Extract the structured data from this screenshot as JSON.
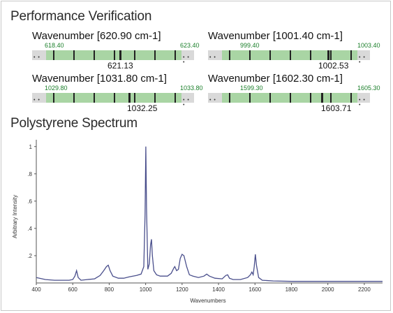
{
  "performance_title": "Performance Verification",
  "spectrum_title": "Polystyrene Spectrum",
  "verifications": [
    {
      "title": "Wavenumber [620.90 cm-1]",
      "low": "618.40",
      "high": "623.40",
      "measured": "621.13"
    },
    {
      "title": "Wavenumber [1001.40 cm-1]",
      "low": "999.40",
      "high": "1003.40",
      "measured": "1002.53"
    },
    {
      "title": "Wavenumber [1031.80 cm-1]",
      "low": "1029.80",
      "high": "1033.80",
      "measured": "1032.25"
    },
    {
      "title": "Wavenumber [1602.30 cm-1]",
      "low": "1599.30",
      "high": "1605.30",
      "measured": "1603.71"
    }
  ],
  "chart_data": {
    "type": "line",
    "xlabel": "Wavenumbers",
    "ylabel": "Arbitrary Intensity",
    "xlim": [
      400,
      2300
    ],
    "ylim": [
      0,
      1.05
    ],
    "x_ticks": [
      "400",
      "600",
      "800",
      "1000",
      "1200",
      "1400",
      "1600",
      "1800",
      "2000",
      "2200"
    ],
    "y_ticks": [
      ".2",
      ".4",
      ".6",
      ".8",
      "1"
    ],
    "line_color": "#4a4f8c",
    "series": [
      {
        "x": [
          400,
          450,
          500,
          550,
          580,
          600,
          612,
          621,
          630,
          645,
          680,
          720,
          750,
          770,
          785,
          795,
          805,
          820,
          850,
          880,
          910,
          950,
          975,
          990,
          997,
          1001,
          1005,
          1012,
          1020,
          1027,
          1032,
          1037,
          1045,
          1060,
          1080,
          1100,
          1120,
          1140,
          1155,
          1160,
          1170,
          1180,
          1190,
          1200,
          1210,
          1225,
          1240,
          1260,
          1290,
          1320,
          1335,
          1350,
          1380,
          1420,
          1440,
          1450,
          1460,
          1480,
          1520,
          1560,
          1575,
          1583,
          1590,
          1596,
          1602,
          1608,
          1620,
          1640,
          1700,
          1800,
          1900,
          2000,
          2100,
          2200,
          2300
        ],
        "y": [
          0.04,
          0.025,
          0.02,
          0.02,
          0.02,
          0.025,
          0.05,
          0.09,
          0.04,
          0.02,
          0.025,
          0.03,
          0.055,
          0.09,
          0.12,
          0.13,
          0.09,
          0.05,
          0.035,
          0.035,
          0.045,
          0.055,
          0.065,
          0.12,
          0.5,
          1.0,
          0.55,
          0.1,
          0.14,
          0.28,
          0.32,
          0.2,
          0.09,
          0.06,
          0.05,
          0.05,
          0.05,
          0.07,
          0.11,
          0.12,
          0.09,
          0.1,
          0.18,
          0.21,
          0.2,
          0.12,
          0.06,
          0.05,
          0.04,
          0.05,
          0.065,
          0.05,
          0.035,
          0.03,
          0.055,
          0.06,
          0.035,
          0.025,
          0.025,
          0.04,
          0.06,
          0.08,
          0.06,
          0.12,
          0.21,
          0.13,
          0.04,
          0.02,
          0.015,
          0.012,
          0.012,
          0.012,
          0.012,
          0.012,
          0.012
        ]
      }
    ]
  }
}
